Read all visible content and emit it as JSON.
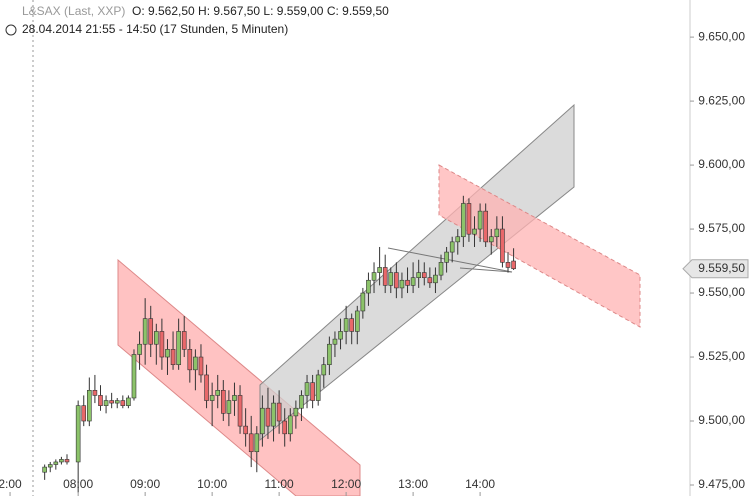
{
  "chart_data": {
    "type": "candlestick",
    "symbol": "L&SAX (Last, XXP)",
    "ohlc_text": "O: 9.562,50  H: 9.567,50  L: 9.559,00  C: 9.559,50",
    "period": "28.04.2014 21:55 - 14:50 (17 Stunden, 5 Minuten)",
    "up_color": "#8cc36a",
    "down_color": "#e8686a",
    "xlim": [
      410,
      1028
    ],
    "xticks": [
      {
        "value": 419,
        "label": "2:00"
      },
      {
        "value": 480,
        "label": "08:00"
      },
      {
        "value": 540,
        "label": "09:00"
      },
      {
        "value": 600,
        "label": "10:00"
      },
      {
        "value": 660,
        "label": "11:00"
      },
      {
        "value": 720,
        "label": "12:00"
      },
      {
        "value": 780,
        "label": "13:00"
      },
      {
        "value": 840,
        "label": "14:00"
      }
    ],
    "ylim": [
      9470.7,
      9664.5
    ],
    "yticks": [
      {
        "value": 9475,
        "label": "9.475,00"
      },
      {
        "value": 9500,
        "label": "9.500,00"
      },
      {
        "value": 9525,
        "label": "9.525,00"
      },
      {
        "value": 9550,
        "label": "9.550,00"
      },
      {
        "value": 9575,
        "label": "9.575,00"
      },
      {
        "value": 9600,
        "label": "9.600,00"
      },
      {
        "value": 9625,
        "label": "9.625,00"
      },
      {
        "value": 9650,
        "label": "9.650,00"
      }
    ],
    "last_price": {
      "value": 9559.5,
      "label": "9.559,50"
    },
    "x": [
      450,
      455,
      460,
      465,
      470,
      480,
      485,
      490,
      495,
      500,
      505,
      510,
      515,
      520,
      525,
      530,
      535,
      540,
      545,
      550,
      555,
      560,
      565,
      570,
      575,
      580,
      585,
      590,
      595,
      600,
      605,
      610,
      615,
      620,
      625,
      630,
      635,
      640,
      645,
      650,
      655,
      660,
      665,
      670,
      675,
      680,
      685,
      690,
      695,
      700,
      705,
      710,
      715,
      720,
      725,
      730,
      735,
      740,
      745,
      750,
      755,
      760,
      765,
      770,
      775,
      780,
      785,
      790,
      795,
      800,
      805,
      810,
      815,
      820,
      825,
      830,
      835,
      840,
      845,
      850,
      855,
      860,
      865,
      870
    ],
    "open": [
      9480,
      9482,
      9483,
      9484,
      9485,
      9484,
      9506,
      9500,
      9512,
      9510,
      9506,
      9508,
      9507,
      9508,
      9506,
      9509,
      9526,
      9530,
      9540,
      9530,
      9535,
      9525,
      9528,
      9522,
      9535,
      9528,
      9520,
      9525,
      9518,
      9508,
      9510,
      9512,
      9503,
      9508,
      9510,
      9498,
      9495,
      9488,
      9495,
      9505,
      9498,
      9507,
      9500,
      9495,
      9502,
      9505,
      9510,
      9515,
      9508,
      9518,
      9522,
      9530,
      9532,
      9535,
      9540,
      9535,
      9543,
      9550,
      9555,
      9558,
      9560,
      9553,
      9558,
      9552,
      9555,
      9553,
      9556,
      9558,
      9556,
      9554,
      9557,
      9562,
      9566,
      9570,
      9572,
      9585,
      9573,
      9575,
      9582,
      9570,
      9572,
      9575,
      9562,
      9562.5
    ],
    "high": [
      9483,
      9484,
      9485,
      9486,
      9487,
      9508,
      9510,
      9517,
      9518,
      9514,
      9510,
      9511,
      9509,
      9510,
      9510,
      9528,
      9535,
      9548,
      9545,
      9538,
      9540,
      9532,
      9535,
      9540,
      9541,
      9532,
      9528,
      9530,
      9522,
      9515,
      9518,
      9516,
      9512,
      9515,
      9514,
      9505,
      9502,
      9498,
      9510,
      9513,
      9510,
      9512,
      9505,
      9505,
      9508,
      9512,
      9518,
      9518,
      9520,
      9525,
      9533,
      9535,
      9540,
      9545,
      9542,
      9545,
      9552,
      9558,
      9562,
      9568,
      9565,
      9560,
      9562,
      9558,
      9560,
      9562,
      9563,
      9562,
      9560,
      9560,
      9565,
      9568,
      9572,
      9575,
      9588,
      9587,
      9580,
      9585,
      9585,
      9575,
      9580,
      9580,
      9566,
      9567.5
    ],
    "low": [
      9477,
      9480,
      9481,
      9483,
      9483,
      9472,
      9498,
      9498,
      9507,
      9504,
      9503,
      9505,
      9505,
      9505,
      9505,
      9508,
      9520,
      9522,
      9525,
      9522,
      9520,
      9518,
      9520,
      9520,
      9525,
      9515,
      9512,
      9515,
      9505,
      9498,
      9505,
      9500,
      9498,
      9502,
      9495,
      9490,
      9482,
      9480,
      9490,
      9493,
      9492,
      9495,
      9490,
      9492,
      9497,
      9500,
      9505,
      9505,
      9506,
      9513,
      9518,
      9525,
      9528,
      9530,
      9530,
      9530,
      9540,
      9545,
      9550,
      9553,
      9550,
      9550,
      9548,
      9548,
      9550,
      9550,
      9552,
      9553,
      9552,
      9550,
      9555,
      9558,
      9562,
      9565,
      9568,
      9570,
      9568,
      9570,
      9568,
      9565,
      9568,
      9560,
      9558,
      9559
    ],
    "close": [
      9482,
      9483,
      9484,
      9485,
      9484,
      9506,
      9500,
      9512,
      9510,
      9506,
      9508,
      9507,
      9508,
      9506,
      9509,
      9526,
      9530,
      9540,
      9530,
      9535,
      9525,
      9528,
      9522,
      9535,
      9528,
      9520,
      9525,
      9518,
      9508,
      9510,
      9512,
      9503,
      9508,
      9510,
      9498,
      9495,
      9488,
      9495,
      9505,
      9498,
      9507,
      9500,
      9495,
      9502,
      9505,
      9510,
      9515,
      9508,
      9518,
      9522,
      9530,
      9532,
      9535,
      9540,
      9535,
      9543,
      9550,
      9555,
      9558,
      9560,
      9553,
      9558,
      9552,
      9555,
      9553,
      9556,
      9558,
      9556,
      9554,
      9557,
      9562,
      9566,
      9570,
      9572,
      9585,
      9573,
      9575,
      9582,
      9570,
      9572,
      9575,
      9562,
      9560,
      9559.5
    ]
  }
}
